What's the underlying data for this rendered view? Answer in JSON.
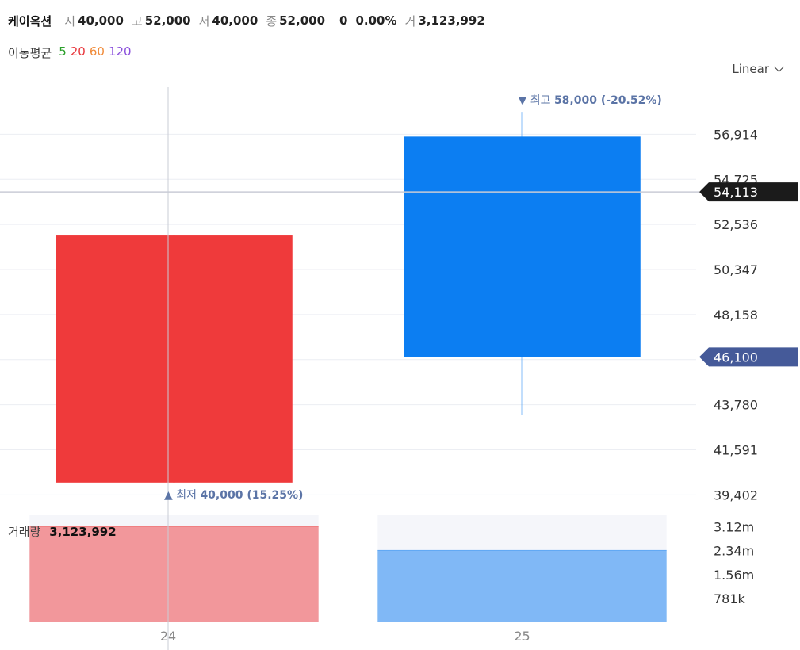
{
  "header": {
    "name": "케이옥션",
    "open_label": "시",
    "open_value": "40,000",
    "high_label": "고",
    "high_value": "52,000",
    "low_label": "저",
    "low_value": "40,000",
    "close_label": "종",
    "close_value": "52,000",
    "change_value": "0",
    "change_pct": "0.00%",
    "volume_label": "거",
    "volume_value": "3,123,992"
  },
  "moving_average": {
    "label": "이동평균",
    "periods": [
      {
        "text": "5",
        "color": "#2ca02c"
      },
      {
        "text": "20",
        "color": "#e8383d"
      },
      {
        "text": "60",
        "color": "#f08b3a"
      },
      {
        "text": "120",
        "color": "#8a4fdc"
      }
    ]
  },
  "scale_select": {
    "value": "Linear"
  },
  "volume_legend": {
    "label": "거래량",
    "value": "3,123,992"
  },
  "colors": {
    "up": "#ef3a3b",
    "down": "#0c7ef2",
    "vol_up": "#f2979b",
    "vol_down": "#80b8f6",
    "crosshair_tag": "#1b1b1b",
    "price_tag": "#455a99",
    "grid": "#eceef3",
    "annotation": "#5b74a6"
  },
  "chart_data": {
    "type": "candlestick",
    "x": [
      "24",
      "25"
    ],
    "candles": [
      {
        "x": "24",
        "open": 40000,
        "high": 52000,
        "low": 40000,
        "close": 52000,
        "volume": 3123992,
        "direction": "up"
      },
      {
        "x": "25",
        "open": 56800,
        "high": 58000,
        "low": 43300,
        "close": 46100,
        "volume": 2350000,
        "direction": "down"
      }
    ],
    "y_ticks": [
      {
        "value": 56914,
        "label": "56,914"
      },
      {
        "value": 54725,
        "label": "54,725"
      },
      {
        "value": 52536,
        "label": "52,536"
      },
      {
        "value": 50347,
        "label": "50,347"
      },
      {
        "value": 48158,
        "label": "48,158"
      },
      {
        "value": 45969,
        "label": ""
      },
      {
        "value": 43780,
        "label": "43,780"
      },
      {
        "value": 41591,
        "label": "41,591"
      },
      {
        "value": 39402,
        "label": "39,402"
      }
    ],
    "ylim": [
      38800,
      59200
    ],
    "volume_ticks": [
      {
        "value": 3120000,
        "label": "3.12m"
      },
      {
        "value": 2340000,
        "label": "2.34m"
      },
      {
        "value": 1560000,
        "label": "1.56m"
      },
      {
        "value": 781000,
        "label": "781k"
      }
    ],
    "volume_lim": [
      0,
      3500000
    ],
    "annotations": {
      "high": {
        "prefix": "최고",
        "text": "58,000 (-20.52%)",
        "candle": 1,
        "marker": "▼"
      },
      "low": {
        "prefix": "최저",
        "text": "40,000 (15.25%)",
        "candle": 0,
        "marker": "▲"
      }
    },
    "crosshair": {
      "value": 54113,
      "label": "54,113",
      "x": "24"
    },
    "last_price": {
      "value": 46100,
      "label": "46,100"
    },
    "grid": true
  }
}
